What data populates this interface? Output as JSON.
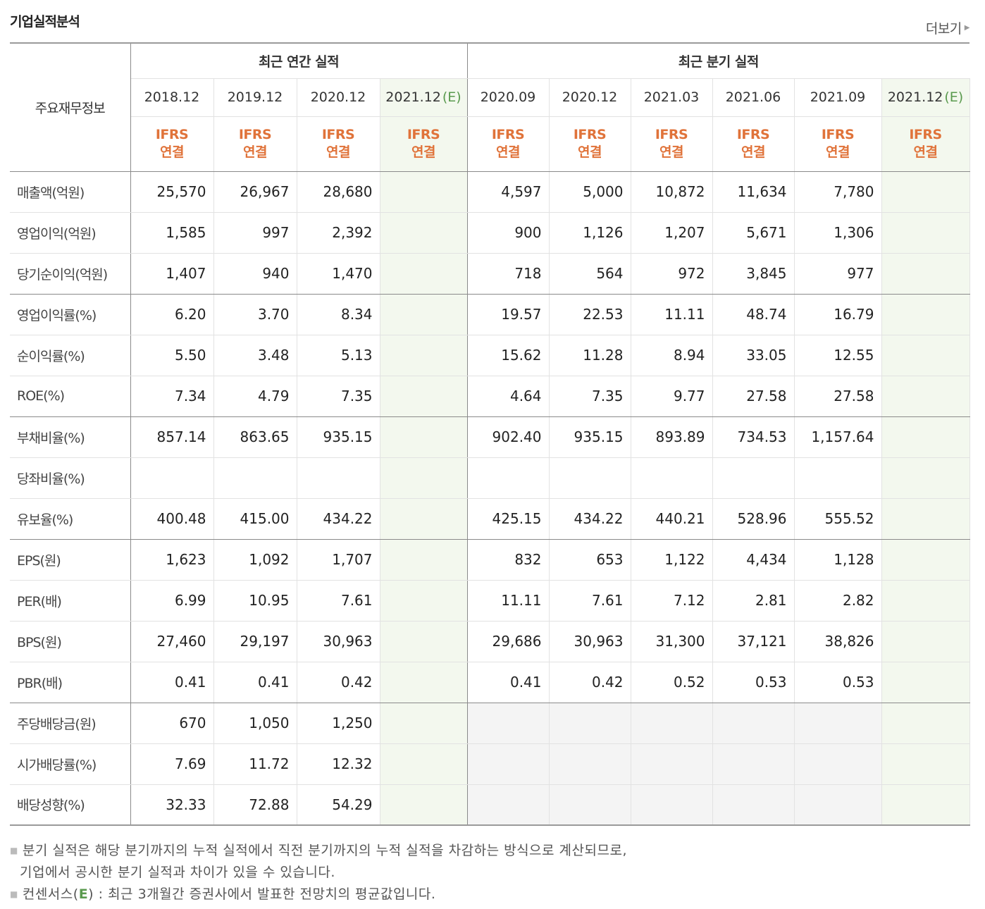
{
  "header": {
    "title": "기업실적분석",
    "more_label": "더보기"
  },
  "table": {
    "main_label": "주요재무정보",
    "annual_label": "최근 연간 실적",
    "quarter_label": "최근 분기 실적",
    "annual_periods": [
      "2018.12",
      "2019.12",
      "2020.12",
      "2021.12"
    ],
    "quarter_periods": [
      "2020.09",
      "2020.12",
      "2021.03",
      "2021.06",
      "2021.09",
      "2021.12"
    ],
    "estimate_mark": "(E)",
    "ifrs_line1": "IFRS",
    "ifrs_line2": "연결",
    "rows": [
      {
        "label": "매출액(억원)",
        "annual": [
          "25,570",
          "26,967",
          "28,680",
          ""
        ],
        "quarter": [
          "4,597",
          "5,000",
          "10,872",
          "11,634",
          "7,780",
          ""
        ]
      },
      {
        "label": "영업이익(억원)",
        "annual": [
          "1,585",
          "997",
          "2,392",
          ""
        ],
        "quarter": [
          "900",
          "1,126",
          "1,207",
          "5,671",
          "1,306",
          ""
        ]
      },
      {
        "label": "당기순이익(억원)",
        "annual": [
          "1,407",
          "940",
          "1,470",
          ""
        ],
        "quarter": [
          "718",
          "564",
          "972",
          "3,845",
          "977",
          ""
        ]
      },
      {
        "label": "영업이익률(%)",
        "annual": [
          "6.20",
          "3.70",
          "8.34",
          ""
        ],
        "quarter": [
          "19.57",
          "22.53",
          "11.11",
          "48.74",
          "16.79",
          ""
        ]
      },
      {
        "label": "순이익률(%)",
        "annual": [
          "5.50",
          "3.48",
          "5.13",
          ""
        ],
        "quarter": [
          "15.62",
          "11.28",
          "8.94",
          "33.05",
          "12.55",
          ""
        ]
      },
      {
        "label": "ROE(%)",
        "annual": [
          "7.34",
          "4.79",
          "7.35",
          ""
        ],
        "quarter": [
          "4.64",
          "7.35",
          "9.77",
          "27.58",
          "27.58",
          ""
        ]
      },
      {
        "label": "부채비율(%)",
        "annual": [
          "857.14",
          "863.65",
          "935.15",
          ""
        ],
        "quarter": [
          "902.40",
          "935.15",
          "893.89",
          "734.53",
          "1,157.64",
          ""
        ]
      },
      {
        "label": "당좌비율(%)",
        "annual": [
          "",
          "",
          "",
          ""
        ],
        "quarter": [
          "",
          "",
          "",
          "",
          "",
          ""
        ]
      },
      {
        "label": "유보율(%)",
        "annual": [
          "400.48",
          "415.00",
          "434.22",
          ""
        ],
        "quarter": [
          "425.15",
          "434.22",
          "440.21",
          "528.96",
          "555.52",
          ""
        ]
      },
      {
        "label": "EPS(원)",
        "annual": [
          "1,623",
          "1,092",
          "1,707",
          ""
        ],
        "quarter": [
          "832",
          "653",
          "1,122",
          "4,434",
          "1,128",
          ""
        ]
      },
      {
        "label": "PER(배)",
        "annual": [
          "6.99",
          "10.95",
          "7.61",
          ""
        ],
        "quarter": [
          "11.11",
          "7.61",
          "7.12",
          "2.81",
          "2.82",
          ""
        ]
      },
      {
        "label": "BPS(원)",
        "annual": [
          "27,460",
          "29,197",
          "30,963",
          ""
        ],
        "quarter": [
          "29,686",
          "30,963",
          "31,300",
          "37,121",
          "38,826",
          ""
        ]
      },
      {
        "label": "PBR(배)",
        "annual": [
          "0.41",
          "0.41",
          "0.42",
          ""
        ],
        "quarter": [
          "0.41",
          "0.42",
          "0.52",
          "0.53",
          "0.53",
          ""
        ]
      },
      {
        "label": "주당배당금(원)",
        "annual": [
          "670",
          "1,050",
          "1,250",
          ""
        ],
        "quarter": [
          "",
          "",
          "",
          "",
          "",
          ""
        ]
      },
      {
        "label": "시가배당률(%)",
        "annual": [
          "7.69",
          "11.72",
          "12.32",
          ""
        ],
        "quarter": [
          "",
          "",
          "",
          "",
          "",
          ""
        ]
      },
      {
        "label": "배당성향(%)",
        "annual": [
          "32.33",
          "72.88",
          "54.29",
          ""
        ],
        "quarter": [
          "",
          "",
          "",
          "",
          "",
          ""
        ]
      }
    ]
  },
  "notes": {
    "line1": "분기 실적은 해당 분기까지의 누적 실적에서 직전 분기까지의 누적 실적을 차감하는 방식으로 계산되므로,",
    "line2": "기업에서 공시한 분기 실적과 차이가 있을 수 있습니다.",
    "line3_prefix": "컨센서스(",
    "line3_em": "E",
    "line3_suffix": ") : 최근 3개월간 증권사에서 발표한 전망치의 평균값입니다."
  }
}
